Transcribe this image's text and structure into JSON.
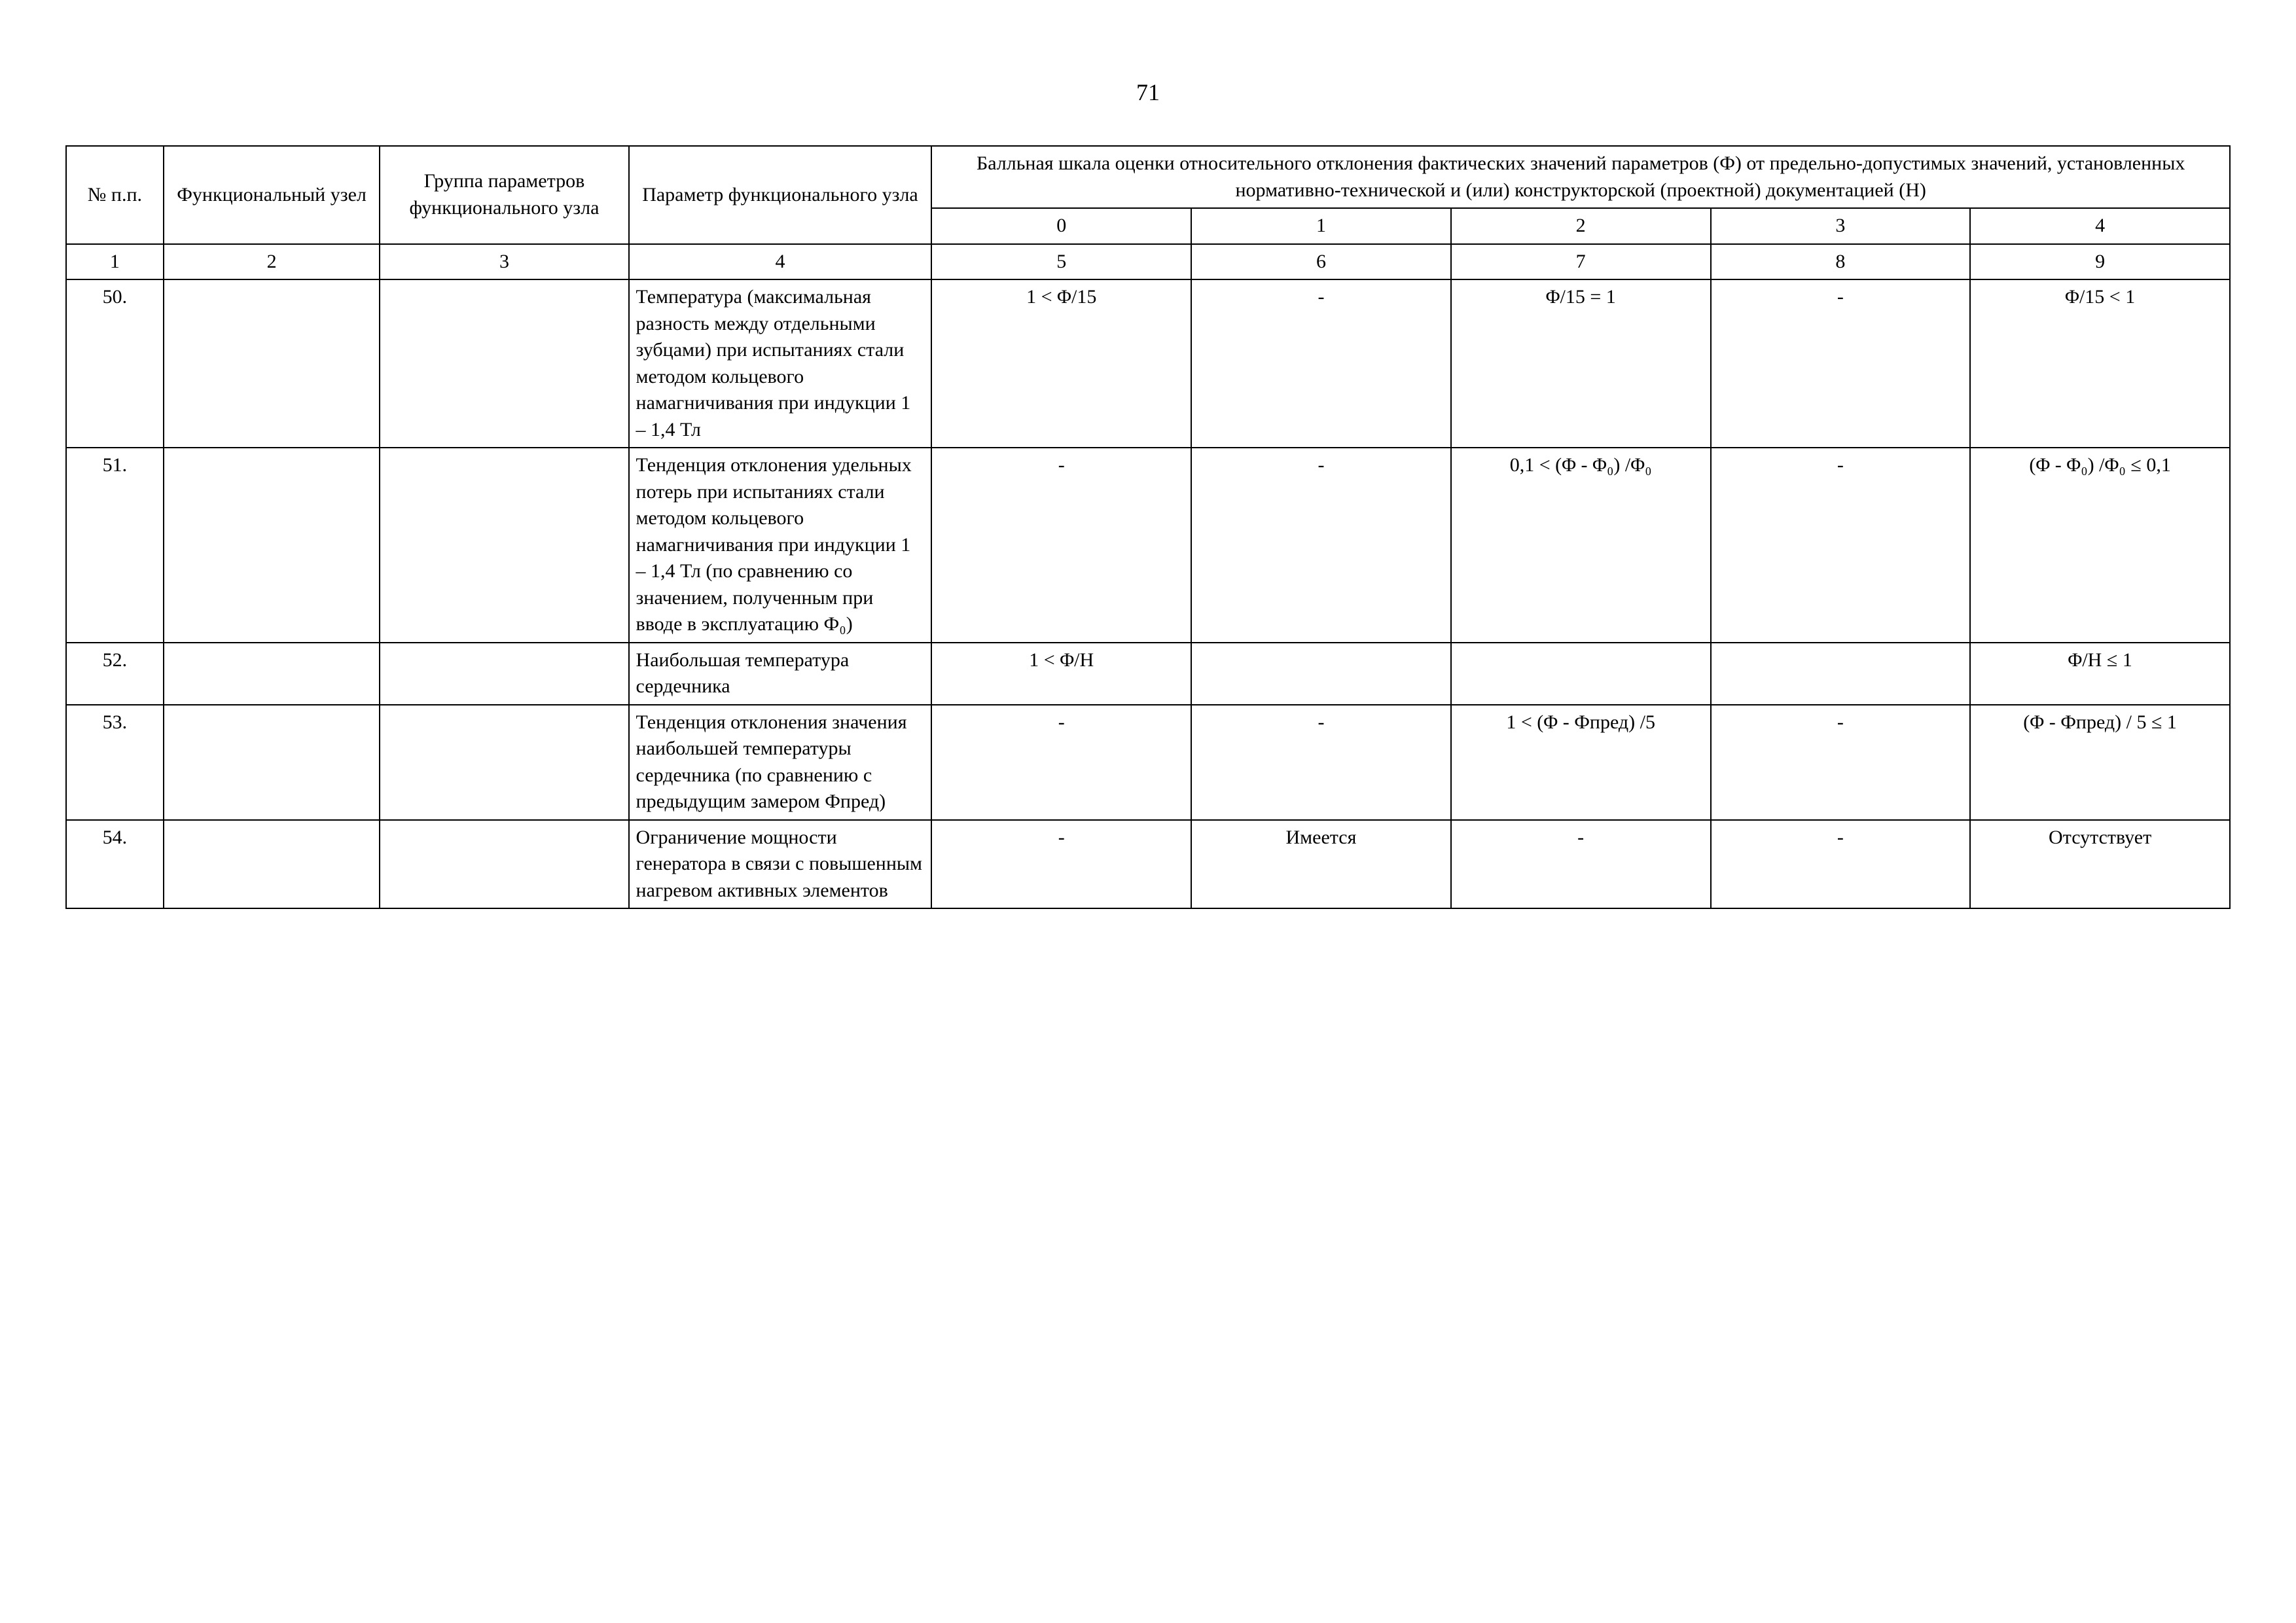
{
  "page_number": "71",
  "header": {
    "col1": "№ п.п.",
    "col2": "Функциональный узел",
    "col3": "Группа параметров функционального узла",
    "col4": "Параметр функционального узла",
    "top": "Балльная шкала оценки относительного отклонения фактических значений параметров (Ф) от предельно-допустимых значений, установленных нормативно-технической и (или) конструкторской (проектной) документацией (Н)",
    "b0": "0",
    "b1": "1",
    "b2": "2",
    "b3": "3",
    "b4": "4"
  },
  "num_row": {
    "c1": "1",
    "c2": "2",
    "c3": "3",
    "c4": "4",
    "c5": "5",
    "c6": "6",
    "c7": "7",
    "c8": "8",
    "c9": "9"
  },
  "rows": [
    {
      "n": "50.",
      "param": "Температура (максимальная разность между отдельными зубцами) при испытаниях стали методом кольцевого намагничивания при индукции 1 – 1,4 Тл",
      "v0": "1 < Φ/15",
      "v1": "-",
      "v2": "Φ/15 = 1",
      "v3": "-",
      "v4": "Φ/15 < 1"
    },
    {
      "n": "51.",
      "param": "Тенденция отклонения удельных потерь при испытаниях стали методом кольцевого намагничивания при индукции 1 – 1,4 Тл (по сравнению со значением, полученным при вводе в эксплуатацию Ф₀)",
      "v0": "-",
      "v1": "-",
      "v2": "0,1 < (Φ - Φ₀) /Φ₀",
      "v3": "-",
      "v4": "(Φ - Φ₀) /Φ₀ ≤ 0,1"
    },
    {
      "n": "52.",
      "param": "Наибольшая температура сердечника",
      "v0": "1 < Φ/Н",
      "v1": "",
      "v2": "",
      "v3": "",
      "v4": "Φ/Н ≤ 1"
    },
    {
      "n": "53.",
      "param": "Тенденция отклонения значения наибольшей температуры сердечника (по сравнению с предыдущим замером Фпред)",
      "v0": "-",
      "v1": "-",
      "v2": "1 < (Φ - Фпред) /5",
      "v3": "-",
      "v4": "(Φ - Фпред) / 5 ≤ 1"
    },
    {
      "n": "54.",
      "param": "Ограничение мощности генератора в связи с повышенным нагревом активных элементов",
      "v0": "-",
      "v1": "Имеется",
      "v2": "-",
      "v3": "-",
      "v4": "Отсутствует"
    }
  ]
}
